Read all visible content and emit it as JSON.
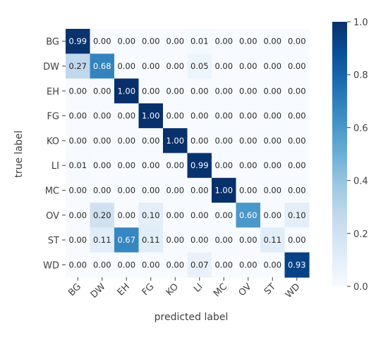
{
  "chart_data": {
    "type": "heatmap",
    "title": "",
    "xlabel": "predicted label",
    "ylabel": "true label",
    "x_categories": [
      "BG",
      "DW",
      "EH",
      "FG",
      "KO",
      "LI",
      "MC",
      "OV",
      "ST",
      "WD"
    ],
    "y_categories": [
      "BG",
      "DW",
      "EH",
      "FG",
      "KO",
      "LI",
      "MC",
      "OV",
      "ST",
      "WD"
    ],
    "values": [
      [
        0.99,
        0.0,
        0.0,
        0.0,
        0.0,
        0.01,
        0.0,
        0.0,
        0.0,
        0.0
      ],
      [
        0.27,
        0.68,
        0.0,
        0.0,
        0.0,
        0.05,
        0.0,
        0.0,
        0.0,
        0.0
      ],
      [
        0.0,
        0.0,
        1.0,
        0.0,
        0.0,
        0.0,
        0.0,
        0.0,
        0.0,
        0.0
      ],
      [
        0.0,
        0.0,
        0.0,
        1.0,
        0.0,
        0.0,
        0.0,
        0.0,
        0.0,
        0.0
      ],
      [
        0.0,
        0.0,
        0.0,
        0.0,
        1.0,
        0.0,
        0.0,
        0.0,
        0.0,
        0.0
      ],
      [
        0.01,
        0.0,
        0.0,
        0.0,
        0.0,
        0.99,
        0.0,
        0.0,
        0.0,
        0.0
      ],
      [
        0.0,
        0.0,
        0.0,
        0.0,
        0.0,
        0.0,
        1.0,
        0.0,
        0.0,
        0.0
      ],
      [
        0.0,
        0.2,
        0.0,
        0.1,
        0.0,
        0.0,
        0.0,
        0.6,
        0.0,
        0.1
      ],
      [
        0.0,
        0.11,
        0.67,
        0.11,
        0.0,
        0.0,
        0.0,
        0.0,
        0.11,
        0.0
      ],
      [
        0.0,
        0.0,
        0.0,
        0.0,
        0.0,
        0.07,
        0.0,
        0.0,
        0.0,
        0.93
      ]
    ],
    "value_format_decimals": 2,
    "colormap": "Blues",
    "colorbar": {
      "range": [
        0.0,
        1.0
      ],
      "ticks": [
        "0.0",
        "0.2",
        "0.4",
        "0.6",
        "0.8",
        "1.0"
      ]
    },
    "x_tick_rotation_deg": -45,
    "grid": false,
    "colors": {
      "low": "#f7fbff",
      "high": "#08306b",
      "text_dark": "#262626",
      "text_light": "#ffffff",
      "axis_text": "#404040"
    }
  }
}
